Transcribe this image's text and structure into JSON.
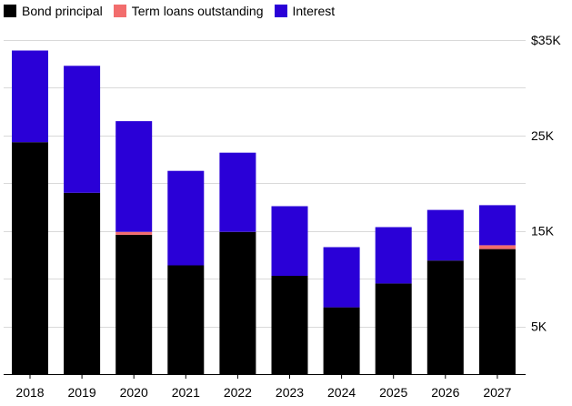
{
  "chart_data": {
    "type": "bar",
    "stacked": true,
    "categories": [
      "2018",
      "2019",
      "2020",
      "2021",
      "2022",
      "2023",
      "2024",
      "2025",
      "2026",
      "2027"
    ],
    "series": [
      {
        "name": "Bond principal",
        "color": "#000000",
        "values": [
          24300,
          19000,
          14600,
          11400,
          14900,
          10300,
          7000,
          9500,
          11900,
          13100
        ]
      },
      {
        "name": "Term loans outstanding",
        "color": "#f26d6d",
        "values": [
          0,
          0,
          300,
          0,
          0,
          0,
          0,
          0,
          0,
          400
        ]
      },
      {
        "name": "Interest",
        "color": "#2a00d7",
        "values": [
          9600,
          13300,
          11600,
          9900,
          8300,
          7300,
          6300,
          5900,
          5300,
          4200
        ]
      }
    ],
    "yticks": [
      {
        "value": 35000,
        "label": "$35K"
      },
      {
        "value": 25000,
        "label": "25K"
      },
      {
        "value": 15000,
        "label": "15K"
      },
      {
        "value": 5000,
        "label": "5K"
      }
    ],
    "ylim": [
      0,
      35000
    ],
    "gridline_step": 5000,
    "grid": true,
    "legend_position": "top-left",
    "title": "",
    "xlabel": "",
    "ylabel": ""
  }
}
